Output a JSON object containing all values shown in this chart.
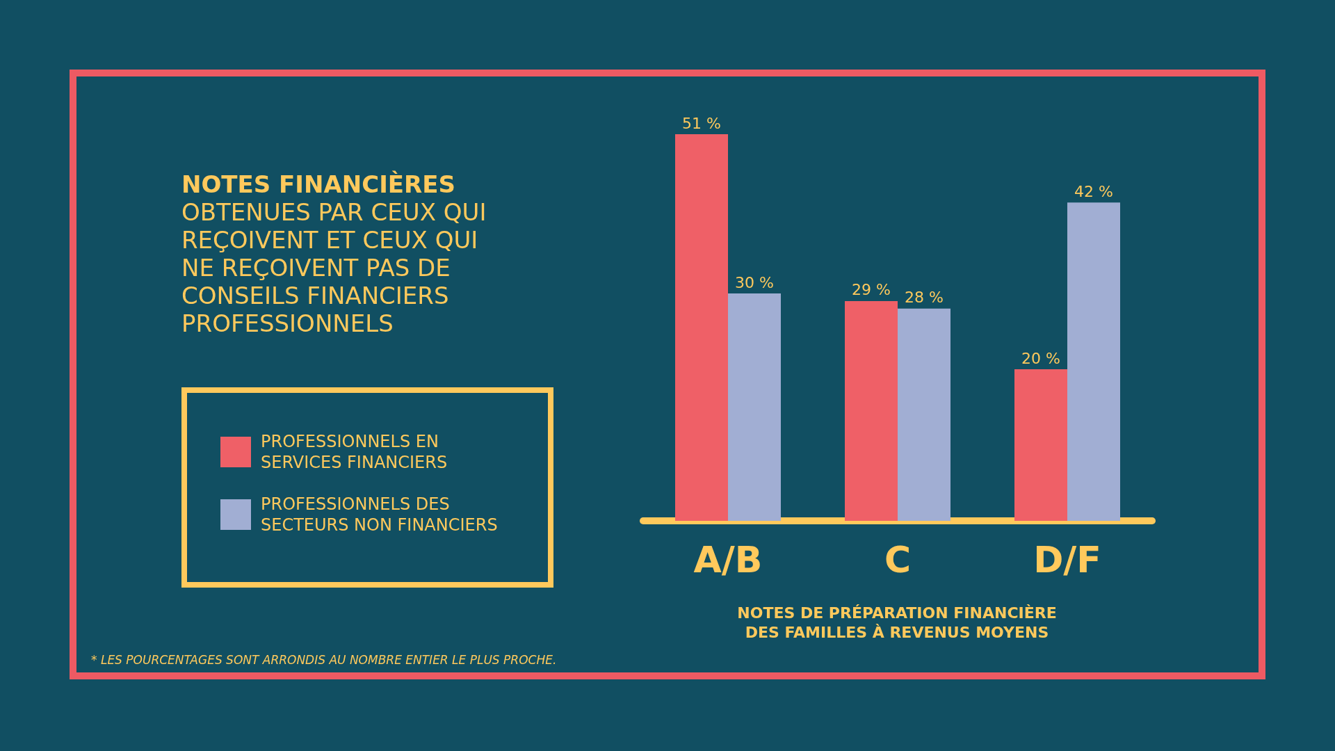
{
  "chart_data": {
    "type": "bar",
    "title": "NOTES FINANCIÈRES",
    "subtitle": "OBTENUES PAR CEUX QUI REÇOIVENT ET CEUX QUI NE REÇOIVENT PAS DE CONSEILS FINANCIERS PROFESSIONNELS",
    "xlabel": "NOTES DE PRÉPARATION FINANCIÈRE DES FAMILLES À REVENUS MOYENS",
    "annotations": [
      "* LES POURCENTAGES SONT ARRONDIS AU NOMBRE ENTIER LE PLUS PROCHE."
    ],
    "categories": [
      "A/B",
      "C",
      "D/F"
    ],
    "series": [
      {
        "name": "PROFESSIONNELS EN SERVICES FINANCIERS",
        "color": "#ef6067",
        "values": [
          51,
          29,
          20
        ],
        "value_labels": [
          "51 %",
          "29 %",
          "20 %"
        ]
      },
      {
        "name": "PROFESSIONNELS DES SECTEURS NON FINANCIERS",
        "color": "#a1aed3",
        "values": [
          30,
          28,
          42
        ],
        "value_labels": [
          "30 %",
          "28 %",
          "42 %"
        ]
      }
    ],
    "legend": "left"
  }
}
